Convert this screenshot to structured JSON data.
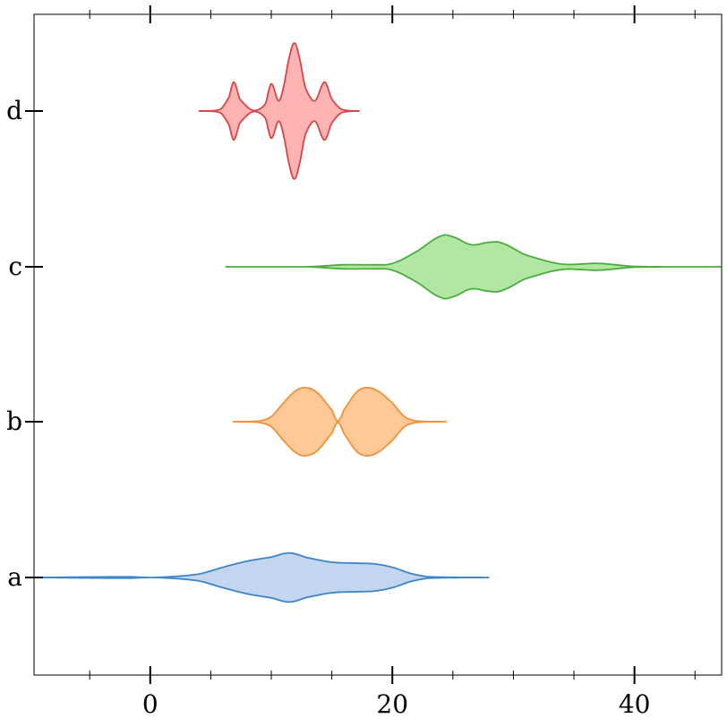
{
  "chart_data": {
    "type": "violin",
    "orientation": "horizontal",
    "title": "",
    "xlabel": "",
    "ylabel": "",
    "xlim": [
      -9.6,
      47.2
    ],
    "x_ticks": [
      0,
      20,
      40
    ],
    "x_tick_labels": [
      "0",
      "20",
      "40"
    ],
    "x_minor_ticks": [
      -5,
      5,
      10,
      15,
      25,
      30,
      35,
      45
    ],
    "categories": [
      "a",
      "b",
      "c",
      "d"
    ],
    "grid": false,
    "series": [
      {
        "label": "a",
        "color": "#3d85c6",
        "fill": "#c3d5ef",
        "range": [
          -9.6,
          28.0
        ],
        "density": [
          [
            -9.6,
            0.0
          ],
          [
            -2,
            0.02
          ],
          [
            0,
            0.0
          ],
          [
            1.5,
            0.02
          ],
          [
            4,
            0.1
          ],
          [
            6,
            0.3
          ],
          [
            8,
            0.48
          ],
          [
            10,
            0.6
          ],
          [
            11.5,
            0.72
          ],
          [
            13,
            0.58
          ],
          [
            15,
            0.45
          ],
          [
            17,
            0.42
          ],
          [
            18.5,
            0.4
          ],
          [
            20,
            0.3
          ],
          [
            21.5,
            0.12
          ],
          [
            23,
            0.02
          ],
          [
            28.0,
            0.0
          ]
        ]
      },
      {
        "label": "b",
        "color": "#f0913a",
        "fill": "#fec996",
        "range": [
          6.8,
          24.5
        ],
        "density": [
          [
            6.8,
            0.0
          ],
          [
            9,
            0.02
          ],
          [
            10,
            0.15
          ],
          [
            11,
            0.55
          ],
          [
            12,
            0.9
          ],
          [
            12.8,
            1.0
          ],
          [
            13.8,
            0.85
          ],
          [
            15,
            0.35
          ],
          [
            15.5,
            0.02
          ],
          [
            16,
            0.35
          ],
          [
            17,
            0.85
          ],
          [
            17.8,
            1.0
          ],
          [
            18.8,
            0.9
          ],
          [
            20,
            0.55
          ],
          [
            21,
            0.15
          ],
          [
            22,
            0.02
          ],
          [
            24.5,
            0.0
          ]
        ]
      },
      {
        "label": "c",
        "color": "#4aad3d",
        "fill": "#b2e6a3",
        "range": [
          6.2,
          47.2
        ],
        "density": [
          [
            6.2,
            0.0
          ],
          [
            13,
            0.0
          ],
          [
            16,
            0.06
          ],
          [
            18.5,
            0.06
          ],
          [
            20,
            0.1
          ],
          [
            22,
            0.45
          ],
          [
            24,
            0.9
          ],
          [
            25,
            0.88
          ],
          [
            26.5,
            0.65
          ],
          [
            28,
            0.72
          ],
          [
            29,
            0.7
          ],
          [
            31,
            0.35
          ],
          [
            34,
            0.08
          ],
          [
            37,
            0.1
          ],
          [
            40,
            0.01
          ],
          [
            47.2,
            0.0
          ]
        ]
      },
      {
        "label": "d",
        "color": "#d64747",
        "fill": "#ffb3b3",
        "range": [
          4.0,
          17.3
        ],
        "density": [
          [
            4.0,
            0.0
          ],
          [
            5.8,
            0.05
          ],
          [
            6.5,
            0.4
          ],
          [
            6.9,
            0.85
          ],
          [
            7.4,
            0.35
          ],
          [
            8.5,
            0.02
          ],
          [
            9.5,
            0.2
          ],
          [
            10,
            0.8
          ],
          [
            10.6,
            0.3
          ],
          [
            11,
            0.7
          ],
          [
            11.5,
            1.6
          ],
          [
            11.9,
            2.0
          ],
          [
            12.3,
            1.6
          ],
          [
            12.8,
            0.7
          ],
          [
            13.6,
            0.3
          ],
          [
            14.4,
            0.85
          ],
          [
            15,
            0.35
          ],
          [
            15.8,
            0.05
          ],
          [
            17.3,
            0.0
          ]
        ]
      }
    ]
  }
}
